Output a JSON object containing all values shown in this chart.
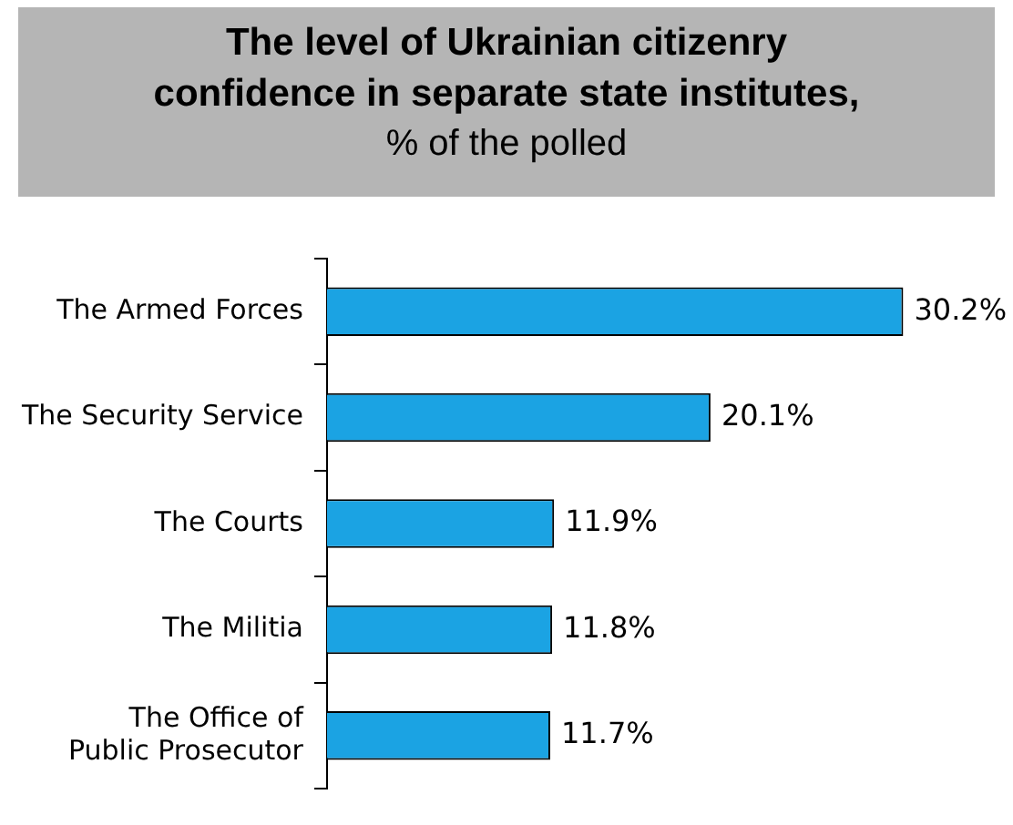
{
  "chart_data": {
    "type": "bar",
    "orientation": "horizontal",
    "title": "The level of Ukrainian citizenry confidence in separate state institutes,",
    "subtitle": "% of the polled",
    "categories": [
      "The Armed Forces",
      "The Security Service",
      "The Courts",
      "The Militia",
      "The Office of\nPublic Prosecutor"
    ],
    "values": [
      30.2,
      20.1,
      11.9,
      11.8,
      11.7
    ],
    "value_labels": [
      "30.2%",
      "20.1%",
      "11.9%",
      "11.8%",
      "11.7%"
    ],
    "color": "#1ba3e3"
  }
}
